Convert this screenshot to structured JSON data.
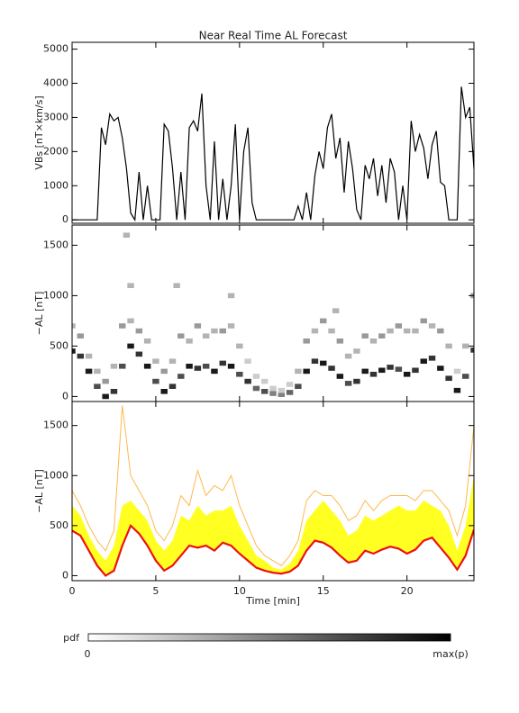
{
  "chart_data": [
    {
      "type": "line",
      "title": "Near Real Time AL Forecast",
      "ylabel": "VBs [nT×km/s]",
      "color": "#000000",
      "xlim": [
        0,
        24
      ],
      "ylim": [
        -100,
        5200
      ],
      "yticks": [
        0,
        1000,
        2000,
        3000,
        4000,
        5000
      ],
      "x": [
        0,
        0.25,
        0.5,
        0.75,
        1,
        1.25,
        1.5,
        1.75,
        2,
        2.25,
        2.5,
        2.75,
        3,
        3.25,
        3.5,
        3.75,
        4,
        4.25,
        4.5,
        4.75,
        5,
        5.25,
        5.5,
        5.75,
        6,
        6.25,
        6.5,
        6.75,
        7,
        7.25,
        7.5,
        7.75,
        8,
        8.25,
        8.5,
        8.75,
        9,
        9.25,
        9.5,
        9.75,
        10,
        10.25,
        10.5,
        10.75,
        11,
        11.25,
        11.5,
        11.75,
        12,
        12.25,
        12.5,
        12.75,
        13,
        13.25,
        13.5,
        13.75,
        14,
        14.25,
        14.5,
        14.75,
        15,
        15.25,
        15.5,
        15.75,
        16,
        16.25,
        16.5,
        16.75,
        17,
        17.25,
        17.5,
        17.75,
        18,
        18.25,
        18.5,
        18.75,
        19,
        19.25,
        19.5,
        19.75,
        20,
        20.25,
        20.5,
        20.75,
        21,
        21.25,
        21.5,
        21.75,
        22,
        22.25,
        22.5,
        22.75,
        23,
        23.25,
        23.5,
        23.75,
        24
      ],
      "values": [
        0,
        0,
        0,
        0,
        0,
        0,
        0,
        2700,
        2200,
        3100,
        2900,
        3000,
        2400,
        1500,
        200,
        0,
        1400,
        0,
        1000,
        0,
        0,
        0,
        2800,
        2600,
        1500,
        0,
        1400,
        0,
        2700,
        2900,
        2600,
        3700,
        1000,
        0,
        2300,
        0,
        1200,
        0,
        1000,
        2800,
        0,
        2000,
        2700,
        500,
        0,
        0,
        0,
        0,
        0,
        0,
        0,
        0,
        0,
        0,
        400,
        0,
        800,
        0,
        1300,
        2000,
        1500,
        2700,
        3100,
        1800,
        2400,
        800,
        2300,
        1500,
        300,
        0,
        1600,
        1200,
        1800,
        700,
        1600,
        500,
        1800,
        1400,
        0,
        1000,
        0,
        2900,
        2000,
        2500,
        2100,
        1200,
        2200,
        2600,
        1100,
        1000,
        0,
        0,
        0,
        3900,
        3000,
        3300,
        1500
      ]
    },
    {
      "type": "density",
      "ylabel": "−AL [nT]",
      "xlim": [
        0,
        24
      ],
      "ylim": [
        -50,
        1700
      ],
      "yticks": [
        0,
        500,
        1000,
        1500
      ],
      "colorbar": {
        "label": "pdf",
        "min_label": "0",
        "max_label": "max(p)"
      },
      "x": [
        0,
        0.5,
        1,
        1.5,
        2,
        2.5,
        3,
        3.5,
        4,
        4.5,
        5,
        5.5,
        6,
        6.5,
        7,
        7.5,
        8,
        8.5,
        9,
        9.5,
        10,
        10.5,
        11,
        11.5,
        12,
        12.5,
        13,
        13.5,
        14,
        14.5,
        15,
        15.5,
        16,
        16.5,
        17,
        17.5,
        18,
        18.5,
        19,
        19.5,
        20,
        20.5,
        21,
        21.5,
        22,
        22.5,
        23,
        23.5,
        24,
        0,
        0.5,
        1,
        1.5,
        2,
        2.5,
        3,
        3.5,
        4,
        4.5,
        5,
        5.5,
        6,
        6.5,
        7,
        7.5,
        8,
        8.5,
        9,
        9.5,
        10,
        10.5,
        11,
        11.5,
        12,
        12.5,
        13,
        13.5,
        14,
        14.5,
        15,
        15.5,
        16,
        16.5,
        17,
        17.5,
        18,
        18.5,
        19,
        19.5,
        20,
        20.5,
        21,
        21.5,
        22,
        22.5,
        23,
        23.5,
        24,
        3.25,
        3.5,
        6.25,
        9.5,
        15.75
      ],
      "y": [
        450,
        400,
        250,
        100,
        0,
        50,
        300,
        500,
        420,
        300,
        150,
        50,
        100,
        200,
        300,
        280,
        300,
        250,
        330,
        300,
        220,
        150,
        80,
        50,
        30,
        20,
        40,
        100,
        250,
        350,
        330,
        280,
        200,
        130,
        150,
        250,
        220,
        260,
        290,
        270,
        220,
        260,
        350,
        380,
        280,
        180,
        60,
        200,
        460,
        700,
        600,
        400,
        250,
        150,
        300,
        700,
        750,
        650,
        550,
        350,
        250,
        350,
        600,
        550,
        700,
        600,
        650,
        650,
        700,
        500,
        350,
        200,
        150,
        80,
        60,
        120,
        250,
        550,
        650,
        750,
        650,
        550,
        400,
        450,
        600,
        550,
        600,
        650,
        700,
        650,
        650,
        750,
        700,
        650,
        500,
        250,
        500,
        1000,
        1600,
        1100,
        1100,
        1000,
        850
      ],
      "values": [
        0.9,
        0.8,
        0.9,
        0.7,
        0.9,
        0.8,
        0.7,
        0.9,
        0.8,
        0.9,
        0.7,
        0.9,
        0.8,
        0.7,
        0.9,
        0.8,
        0.7,
        0.9,
        0.8,
        0.9,
        0.7,
        0.8,
        0.6,
        0.7,
        0.5,
        0.5,
        0.6,
        0.7,
        0.9,
        0.8,
        0.9,
        0.8,
        0.9,
        0.7,
        0.8,
        0.9,
        0.8,
        0.9,
        0.8,
        0.7,
        0.9,
        0.8,
        0.9,
        0.8,
        0.9,
        0.8,
        0.9,
        0.7,
        0.8,
        0.3,
        0.4,
        0.3,
        0.3,
        0.4,
        0.3,
        0.4,
        0.3,
        0.4,
        0.3,
        0.3,
        0.4,
        0.3,
        0.4,
        0.3,
        0.4,
        0.3,
        0.3,
        0.4,
        0.3,
        0.3,
        0.2,
        0.2,
        0.2,
        0.2,
        0.2,
        0.2,
        0.3,
        0.4,
        0.3,
        0.4,
        0.3,
        0.4,
        0.3,
        0.3,
        0.4,
        0.3,
        0.4,
        0.3,
        0.4,
        0.3,
        0.3,
        0.4,
        0.3,
        0.4,
        0.3,
        0.2,
        0.3,
        0.4,
        0.3,
        0.3,
        0.3,
        0.3,
        0.3
      ]
    },
    {
      "type": "band",
      "ylabel": "−AL [nT]",
      "xlabel": "Time [min]",
      "xlim": [
        0,
        24
      ],
      "ylim": [
        -50,
        1740
      ],
      "xticks": [
        0,
        5,
        10,
        15,
        20
      ],
      "yticks": [
        0,
        500,
        1000,
        1500
      ],
      "x": [
        0,
        0.5,
        1,
        1.5,
        2,
        2.5,
        3,
        3.5,
        4,
        4.5,
        5,
        5.5,
        6,
        6.5,
        7,
        7.5,
        8,
        8.5,
        9,
        9.5,
        10,
        10.5,
        11,
        11.5,
        12,
        12.5,
        13,
        13.5,
        14,
        14.5,
        15,
        15.5,
        16,
        16.5,
        17,
        17.5,
        18,
        18.5,
        19,
        19.5,
        20,
        20.5,
        21,
        21.5,
        22,
        22.5,
        23,
        23.5,
        24
      ],
      "band": {
        "color": "#ffff22",
        "values": [
          700,
          600,
          400,
          250,
          150,
          300,
          700,
          750,
          650,
          550,
          350,
          250,
          350,
          600,
          550,
          700,
          600,
          650,
          650,
          700,
          500,
          350,
          200,
          150,
          80,
          60,
          120,
          250,
          550,
          650,
          750,
          650,
          550,
          400,
          450,
          600,
          550,
          600,
          650,
          700,
          650,
          650,
          750,
          700,
          650,
          500,
          250,
          500,
          1000
        ]
      },
      "series": [
        {
          "color": "#ffb84d",
          "values": [
            850,
            700,
            500,
            350,
            250,
            450,
            1700,
            1000,
            850,
            700,
            450,
            350,
            500,
            800,
            700,
            1050,
            800,
            900,
            850,
            1000,
            700,
            500,
            300,
            200,
            150,
            100,
            200,
            350,
            750,
            850,
            800,
            800,
            700,
            550,
            600,
            750,
            650,
            750,
            800,
            800,
            800,
            750,
            850,
            850,
            750,
            650,
            400,
            700,
            1500
          ]
        },
        {
          "color": "#ee1111",
          "values": [
            450,
            400,
            250,
            100,
            0,
            50,
            300,
            500,
            420,
            300,
            150,
            50,
            100,
            200,
            300,
            280,
            300,
            250,
            330,
            300,
            220,
            150,
            80,
            50,
            30,
            20,
            40,
            100,
            250,
            350,
            330,
            280,
            200,
            130,
            150,
            250,
            220,
            260,
            290,
            270,
            220,
            260,
            350,
            380,
            280,
            180,
            60,
            200,
            460
          ]
        }
      ]
    }
  ]
}
